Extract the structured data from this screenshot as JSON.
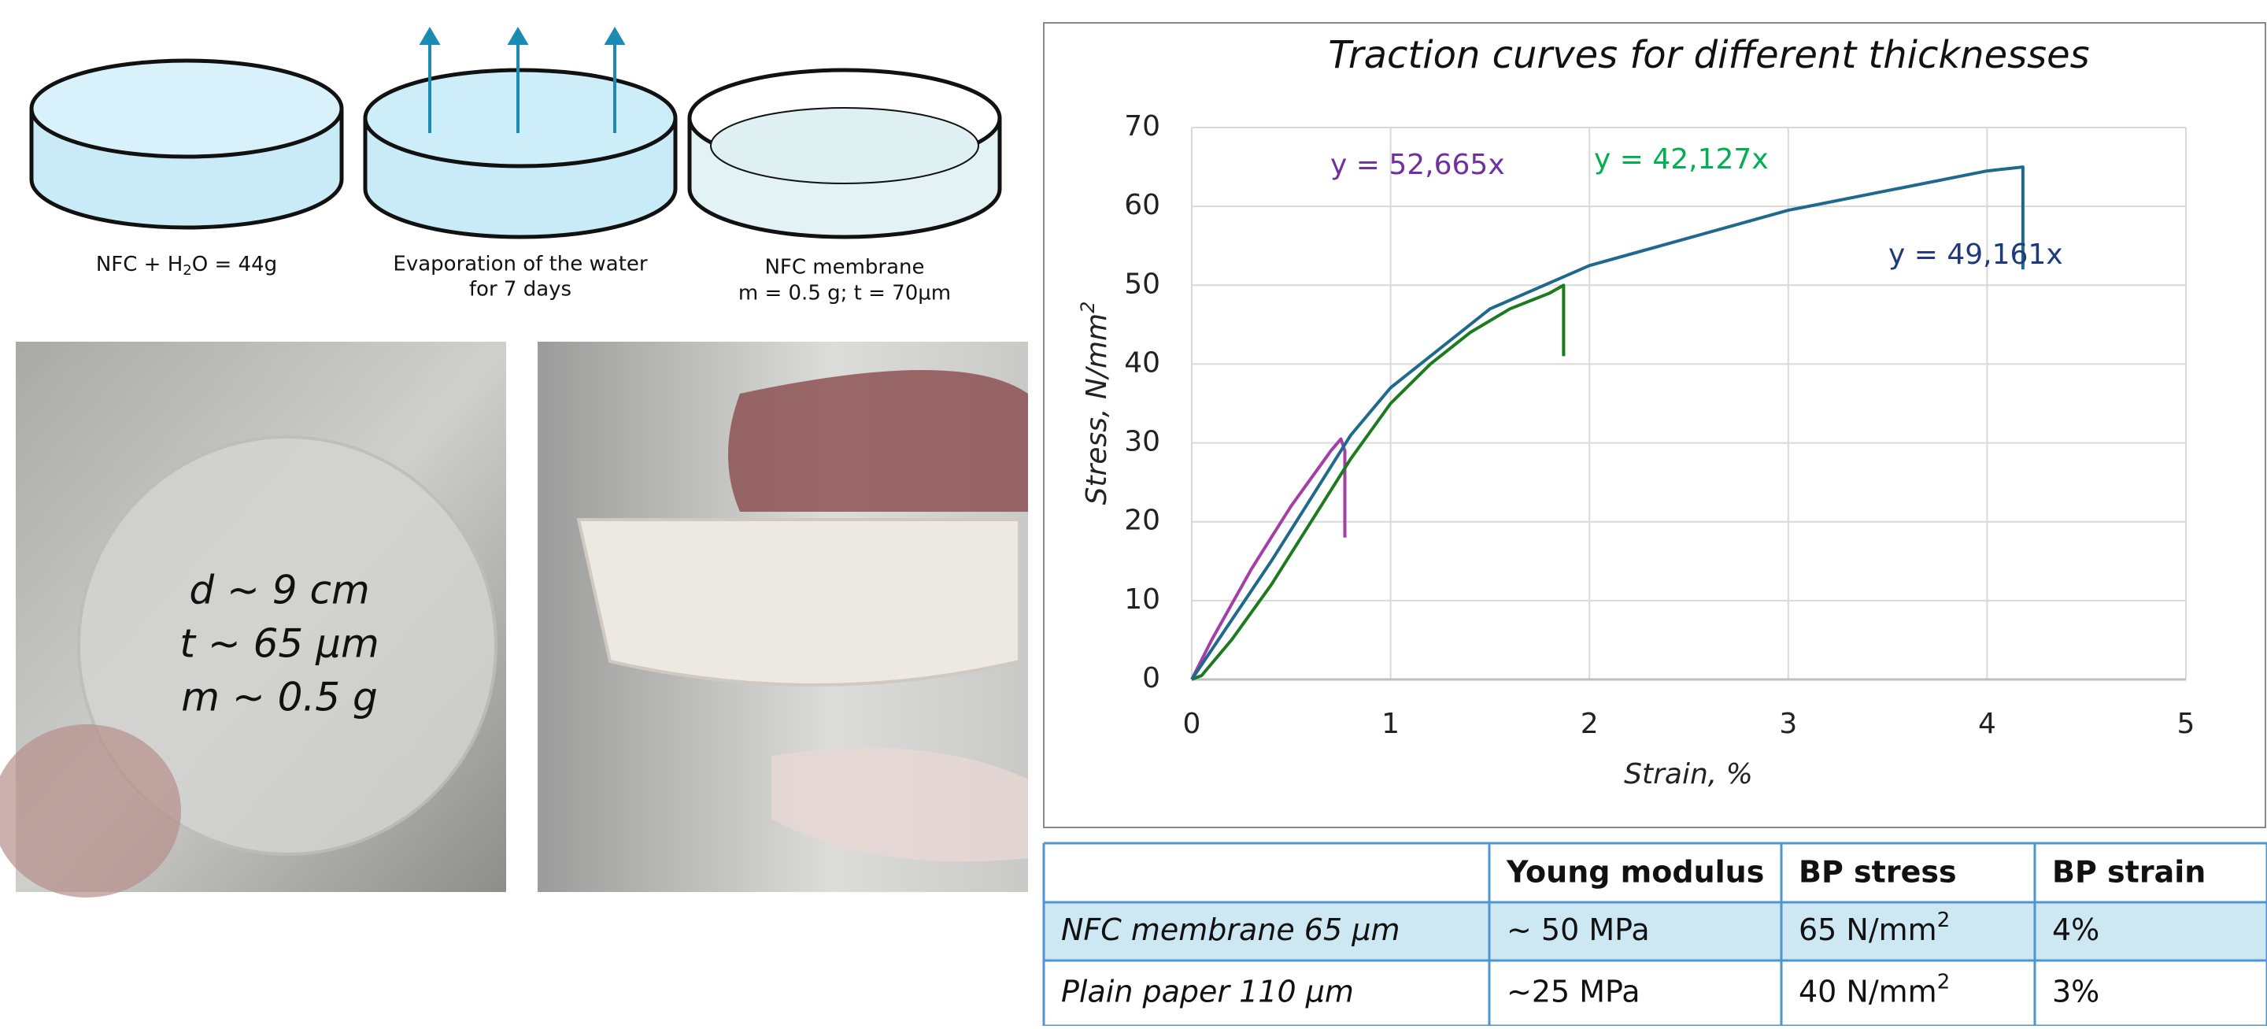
{
  "diagram": {
    "steps": [
      {
        "label": [
          "NFC + H",
          "2",
          "O = 44g"
        ]
      },
      {
        "label": [
          "Evaporation of the water",
          "for 7 days"
        ]
      },
      {
        "label": [
          "NFC membrane",
          "m = 0.5 g; t = 70µm"
        ]
      }
    ]
  },
  "photos": {
    "caption": [
      "d ~ 9 cm",
      "t ~ 65 µm",
      "m ~ 0.5 g"
    ]
  },
  "chart_data": {
    "type": "line",
    "title": "Traction curves for different thicknesses",
    "xlabel": "Strain, %",
    "ylabel": "Stress, N/mm",
    "ylabel_sup": "2",
    "xlim": [
      0,
      5
    ],
    "ylim": [
      0,
      70
    ],
    "xticks": [
      0,
      1,
      2,
      3,
      4,
      5
    ],
    "yticks": [
      0,
      10,
      20,
      30,
      40,
      50,
      60,
      70
    ],
    "grid": true,
    "series": [
      {
        "name": "y = 52,665x",
        "color": "#a43fa8",
        "label_color": "#7030a0",
        "x": [
          0,
          0.1,
          0.2,
          0.3,
          0.4,
          0.5,
          0.6,
          0.7,
          0.75,
          0.77,
          0.77
        ],
        "values": [
          0,
          5,
          9.5,
          14,
          18,
          22,
          25.5,
          29,
          30.5,
          29,
          18
        ]
      },
      {
        "name": "y = 42,127x",
        "color": "#1e7a1e",
        "label_color": "#00b050",
        "x": [
          0,
          0.05,
          0.2,
          0.4,
          0.6,
          0.8,
          1.0,
          1.2,
          1.4,
          1.6,
          1.8,
          1.87,
          1.87
        ],
        "values": [
          0,
          0.5,
          5,
          12,
          20,
          28,
          35,
          40,
          44,
          47,
          49,
          50,
          41
        ]
      },
      {
        "name": "y = 49,161x",
        "color": "#1f6a8c",
        "label_color": "#1f3a7a",
        "x": [
          0,
          0.2,
          0.4,
          0.6,
          0.8,
          1.0,
          1.5,
          2.0,
          2.5,
          3.0,
          3.5,
          4.0,
          4.18,
          4.18
        ],
        "values": [
          0,
          7.5,
          15,
          23,
          31,
          37,
          47,
          52.5,
          56,
          59.5,
          62,
          64.5,
          65,
          52
        ]
      }
    ]
  },
  "table": {
    "header": [
      "",
      "Young modulus",
      "BP stress",
      "BP strain"
    ],
    "rows": [
      [
        {
          "text": "NFC membrane 65  µm"
        },
        {
          "text": "~ 50 MPa"
        },
        {
          "text": "65 N/mm",
          "sup": "2"
        },
        {
          "text": "4%"
        }
      ],
      [
        {
          "text": "Plain paper 110  µm"
        },
        {
          "text": "~25 MPa"
        },
        {
          "text": "40 N/mm",
          "sup": "2"
        },
        {
          "text": "3%"
        }
      ]
    ]
  }
}
